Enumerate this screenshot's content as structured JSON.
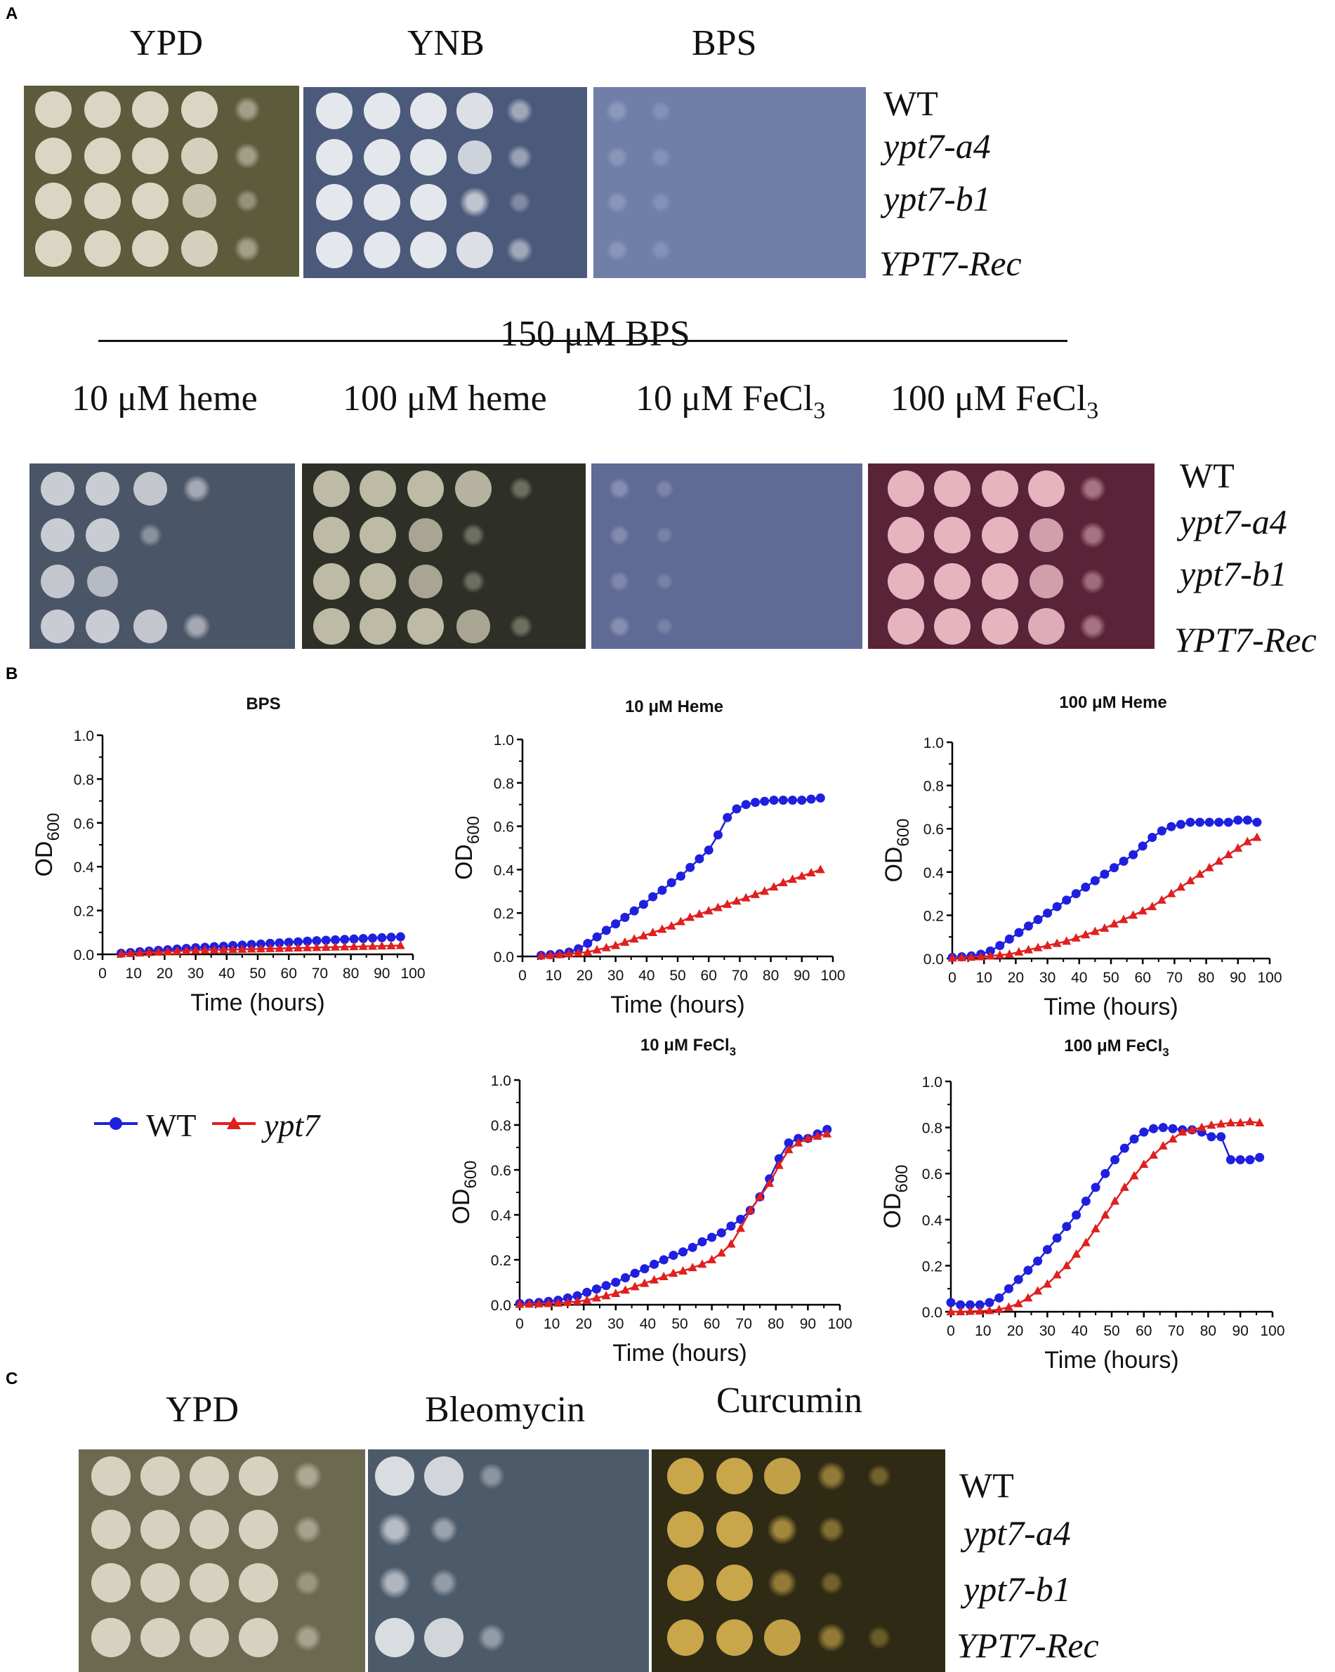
{
  "panels": {
    "a": "A",
    "b": "B",
    "c": "C"
  },
  "panel_a": {
    "top_headers": [
      "YPD",
      "YNB",
      "BPS"
    ],
    "strains": [
      "WT",
      "ypt7-a4",
      "ypt7-b1",
      "YPT7-Rec"
    ],
    "bps_label": "150 μM BPS",
    "conditions": [
      {
        "pre": "10 μM heme",
        "sub": ""
      },
      {
        "pre": "100 μM heme",
        "sub": ""
      },
      {
        "pre": "10 μM FeCl",
        "sub": "3"
      },
      {
        "pre": "100 μM FeCl",
        "sub": "3"
      }
    ],
    "plate_colors": {
      "ypd": "#5c5b3c",
      "ynb": "#4b5a7a",
      "bps": "#6f7fa8",
      "heme10": "#4a5567",
      "heme100": "#2e3027",
      "fe10": "#5f6b94",
      "fe100": "#5a2338"
    }
  },
  "panel_c": {
    "headers": [
      "YPD",
      "Bleomycin",
      "Curcumin"
    ],
    "strains": [
      "WT",
      "ypt7-a4",
      "ypt7-b1",
      "YPT7-Rec"
    ],
    "plate_colors": {
      "ypd": "#6b6950",
      "bleo": "#4d5a6a",
      "curc": "#2e2a14"
    }
  },
  "legend": {
    "wt": "WT",
    "mut": "ypt7",
    "wt_color": "#1f1fe0",
    "mut_color": "#e01f1f"
  },
  "chart_data": [
    {
      "type": "line",
      "title": "BPS",
      "title_pre": "BPS",
      "title_sub": "",
      "xlabel": "Time (hours)",
      "ylabel_main": "OD",
      "ylabel_sub": "600",
      "xlim": [
        0,
        100
      ],
      "ylim": [
        0,
        1.0
      ],
      "xticks": [
        "0",
        "10",
        "20",
        "30",
        "40",
        "50",
        "60",
        "70",
        "80",
        "90",
        "100"
      ],
      "yticks": [
        "0.0",
        "0.2",
        "0.4",
        "0.6",
        "0.8",
        "1.0"
      ],
      "x": [
        6,
        9,
        12,
        15,
        18,
        21,
        24,
        27,
        30,
        33,
        36,
        39,
        42,
        45,
        48,
        51,
        54,
        57,
        60,
        63,
        66,
        69,
        72,
        75,
        78,
        81,
        84,
        87,
        90,
        93,
        96
      ],
      "series": [
        {
          "name": "WT",
          "marker": "circle",
          "values": [
            0.005,
            0.008,
            0.012,
            0.015,
            0.018,
            0.021,
            0.024,
            0.027,
            0.03,
            0.032,
            0.035,
            0.037,
            0.04,
            0.042,
            0.045,
            0.047,
            0.05,
            0.052,
            0.055,
            0.057,
            0.06,
            0.062,
            0.064,
            0.066,
            0.068,
            0.07,
            0.072,
            0.074,
            0.076,
            0.078,
            0.08
          ]
        },
        {
          "name": "ypt7",
          "marker": "triangle",
          "values": [
            0.002,
            0.004,
            0.006,
            0.008,
            0.01,
            0.012,
            0.014,
            0.016,
            0.018,
            0.019,
            0.02,
            0.021,
            0.022,
            0.023,
            0.024,
            0.025,
            0.026,
            0.027,
            0.028,
            0.029,
            0.03,
            0.031,
            0.032,
            0.033,
            0.034,
            0.035,
            0.036,
            0.037,
            0.038,
            0.039,
            0.04
          ]
        }
      ]
    },
    {
      "type": "line",
      "title": "10 μM Heme",
      "title_pre": "10 μM Heme",
      "title_sub": "",
      "xlabel": "Time (hours)",
      "ylabel_main": "OD",
      "ylabel_sub": "600",
      "xlim": [
        0,
        100
      ],
      "ylim": [
        0,
        1.0
      ],
      "xticks": [
        "0",
        "10",
        "20",
        "30",
        "40",
        "50",
        "60",
        "70",
        "80",
        "90",
        "100"
      ],
      "yticks": [
        "0.0",
        "0.2",
        "0.4",
        "0.6",
        "0.8",
        "1.0"
      ],
      "x": [
        6,
        9,
        12,
        15,
        18,
        21,
        24,
        27,
        30,
        33,
        36,
        39,
        42,
        45,
        48,
        51,
        54,
        57,
        60,
        63,
        66,
        69,
        72,
        75,
        78,
        81,
        84,
        87,
        90,
        93,
        96
      ],
      "series": [
        {
          "name": "WT",
          "marker": "circle",
          "values": [
            0.005,
            0.008,
            0.012,
            0.02,
            0.035,
            0.06,
            0.09,
            0.12,
            0.15,
            0.18,
            0.21,
            0.24,
            0.275,
            0.305,
            0.34,
            0.37,
            0.41,
            0.45,
            0.49,
            0.56,
            0.64,
            0.68,
            0.7,
            0.71,
            0.715,
            0.72,
            0.72,
            0.72,
            0.72,
            0.725,
            0.73
          ]
        },
        {
          "name": "ypt7",
          "marker": "triangle",
          "values": [
            0.003,
            0.005,
            0.008,
            0.012,
            0.016,
            0.02,
            0.03,
            0.04,
            0.05,
            0.065,
            0.08,
            0.095,
            0.11,
            0.125,
            0.14,
            0.16,
            0.18,
            0.195,
            0.21,
            0.225,
            0.24,
            0.255,
            0.27,
            0.285,
            0.3,
            0.32,
            0.34,
            0.355,
            0.37,
            0.385,
            0.4
          ]
        }
      ]
    },
    {
      "type": "line",
      "title": "100 μM Heme",
      "title_pre": "100 μM Heme",
      "title_sub": "",
      "xlabel": "Time (hours)",
      "ylabel_main": "OD",
      "ylabel_sub": "600",
      "xlim": [
        0,
        100
      ],
      "ylim": [
        0,
        1.0
      ],
      "xticks": [
        "0",
        "10",
        "20",
        "30",
        "40",
        "50",
        "60",
        "70",
        "80",
        "90",
        "100"
      ],
      "yticks": [
        "0.0",
        "0.2",
        "0.4",
        "0.6",
        "0.8",
        "1.0"
      ],
      "x": [
        0,
        3,
        6,
        9,
        12,
        15,
        18,
        21,
        24,
        27,
        30,
        33,
        36,
        39,
        42,
        45,
        48,
        51,
        54,
        57,
        60,
        63,
        66,
        69,
        72,
        75,
        78,
        81,
        84,
        87,
        90,
        93,
        96
      ],
      "series": [
        {
          "name": "WT",
          "marker": "circle",
          "values": [
            0.005,
            0.008,
            0.012,
            0.02,
            0.035,
            0.06,
            0.09,
            0.12,
            0.15,
            0.18,
            0.21,
            0.24,
            0.27,
            0.3,
            0.33,
            0.36,
            0.39,
            0.42,
            0.45,
            0.48,
            0.52,
            0.56,
            0.59,
            0.61,
            0.62,
            0.63,
            0.63,
            0.63,
            0.63,
            0.63,
            0.64,
            0.64,
            0.63
          ]
        },
        {
          "name": "ypt7",
          "marker": "triangle",
          "values": [
            0.002,
            0.004,
            0.006,
            0.008,
            0.012,
            0.016,
            0.02,
            0.03,
            0.04,
            0.05,
            0.06,
            0.07,
            0.08,
            0.095,
            0.11,
            0.125,
            0.14,
            0.16,
            0.18,
            0.2,
            0.22,
            0.24,
            0.27,
            0.3,
            0.33,
            0.36,
            0.39,
            0.42,
            0.45,
            0.48,
            0.51,
            0.54,
            0.56
          ]
        }
      ]
    },
    {
      "type": "line",
      "title": "10 μM FeCl3",
      "title_pre": "10 μM FeCl",
      "title_sub": "3",
      "xlabel": "Time (hours)",
      "ylabel_main": "OD",
      "ylabel_sub": "600",
      "xlim": [
        0,
        100
      ],
      "ylim": [
        0,
        1.0
      ],
      "xticks": [
        "0",
        "10",
        "20",
        "30",
        "40",
        "50",
        "60",
        "70",
        "80",
        "90",
        "100"
      ],
      "yticks": [
        "0.0",
        "0.2",
        "0.4",
        "0.6",
        "0.8",
        "1.0"
      ],
      "x": [
        0,
        3,
        6,
        9,
        12,
        15,
        18,
        21,
        24,
        27,
        30,
        33,
        36,
        39,
        42,
        45,
        48,
        51,
        54,
        57,
        60,
        63,
        66,
        69,
        72,
        75,
        78,
        81,
        84,
        87,
        90,
        93,
        96
      ],
      "series": [
        {
          "name": "WT",
          "marker": "circle",
          "values": [
            0.005,
            0.007,
            0.01,
            0.015,
            0.02,
            0.03,
            0.04,
            0.055,
            0.07,
            0.085,
            0.1,
            0.12,
            0.14,
            0.16,
            0.18,
            0.2,
            0.22,
            0.235,
            0.255,
            0.28,
            0.3,
            0.32,
            0.35,
            0.38,
            0.42,
            0.48,
            0.56,
            0.65,
            0.72,
            0.74,
            0.74,
            0.76,
            0.78
          ]
        },
        {
          "name": "ypt7",
          "marker": "triangle",
          "values": [
            0.002,
            0.003,
            0.004,
            0.005,
            0.007,
            0.01,
            0.015,
            0.02,
            0.03,
            0.04,
            0.05,
            0.065,
            0.08,
            0.095,
            0.11,
            0.125,
            0.14,
            0.15,
            0.165,
            0.18,
            0.2,
            0.23,
            0.27,
            0.34,
            0.42,
            0.48,
            0.54,
            0.62,
            0.69,
            0.72,
            0.74,
            0.75,
            0.76
          ]
        }
      ]
    },
    {
      "type": "line",
      "title": "100 μM FeCl3",
      "title_pre": "100 μM FeCl",
      "title_sub": "3",
      "xlabel": "Time (hours)",
      "ylabel_main": "OD",
      "ylabel_sub": "600",
      "xlim": [
        0,
        100
      ],
      "ylim": [
        0,
        1.0
      ],
      "xticks": [
        "0",
        "10",
        "20",
        "30",
        "40",
        "50",
        "60",
        "70",
        "80",
        "90",
        "100"
      ],
      "yticks": [
        "0.0",
        "0.2",
        "0.4",
        "0.6",
        "0.8",
        "1.0"
      ],
      "x": [
        0,
        3,
        6,
        9,
        12,
        15,
        18,
        21,
        24,
        27,
        30,
        33,
        36,
        39,
        42,
        45,
        48,
        51,
        54,
        57,
        60,
        63,
        66,
        69,
        72,
        75,
        78,
        81,
        84,
        87,
        90,
        93,
        96
      ],
      "series": [
        {
          "name": "WT",
          "marker": "circle",
          "values": [
            0.04,
            0.03,
            0.03,
            0.03,
            0.04,
            0.06,
            0.1,
            0.14,
            0.18,
            0.22,
            0.27,
            0.32,
            0.37,
            0.42,
            0.48,
            0.54,
            0.6,
            0.66,
            0.71,
            0.75,
            0.78,
            0.795,
            0.8,
            0.795,
            0.79,
            0.79,
            0.78,
            0.76,
            0.76,
            0.66,
            0.66,
            0.66,
            0.67
          ]
        },
        {
          "name": "ypt7",
          "marker": "triangle",
          "values": [
            0.0,
            0.0,
            0.002,
            0.003,
            0.005,
            0.01,
            0.02,
            0.035,
            0.06,
            0.09,
            0.12,
            0.16,
            0.2,
            0.25,
            0.3,
            0.36,
            0.42,
            0.48,
            0.54,
            0.59,
            0.64,
            0.68,
            0.72,
            0.75,
            0.78,
            0.79,
            0.8,
            0.81,
            0.815,
            0.82,
            0.82,
            0.825,
            0.82
          ]
        }
      ]
    }
  ]
}
